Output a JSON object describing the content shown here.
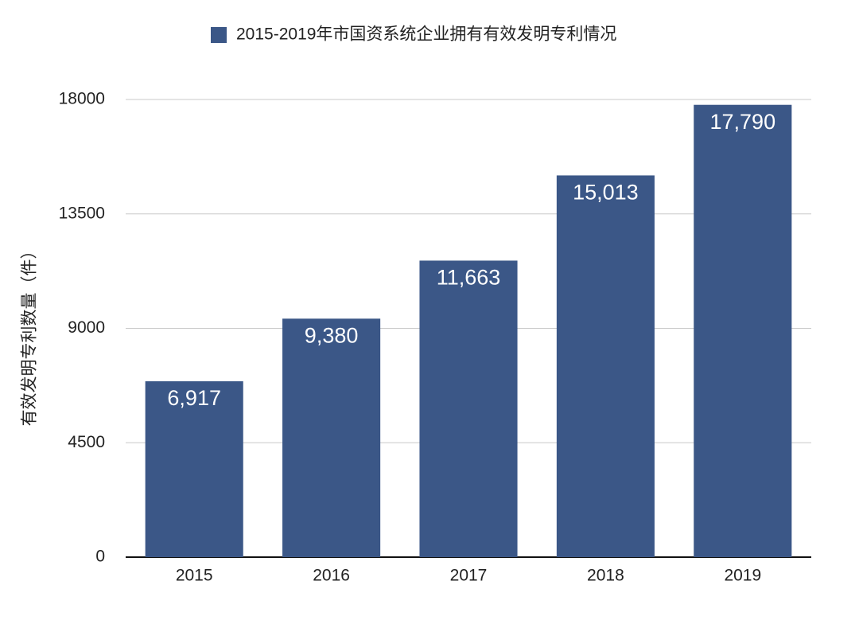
{
  "chart_data": {
    "type": "bar",
    "categories": [
      "2015",
      "2016",
      "2017",
      "2018",
      "2019"
    ],
    "series": [
      {
        "name": "2015-2019年市国资系统企业拥有有效发明专利情况",
        "color": "#3b5787",
        "values": [
          6917,
          9380,
          11663,
          15013,
          17790
        ],
        "value_labels": [
          "6,917",
          "9,380",
          "11,663",
          "15,013",
          "17,790"
        ]
      }
    ],
    "y_label": "有效发明专利数量（件）",
    "ylim": [
      0,
      18000
    ],
    "yticks": [
      0,
      4500,
      9000,
      13500,
      18000
    ],
    "grid": true,
    "legend": "top"
  }
}
